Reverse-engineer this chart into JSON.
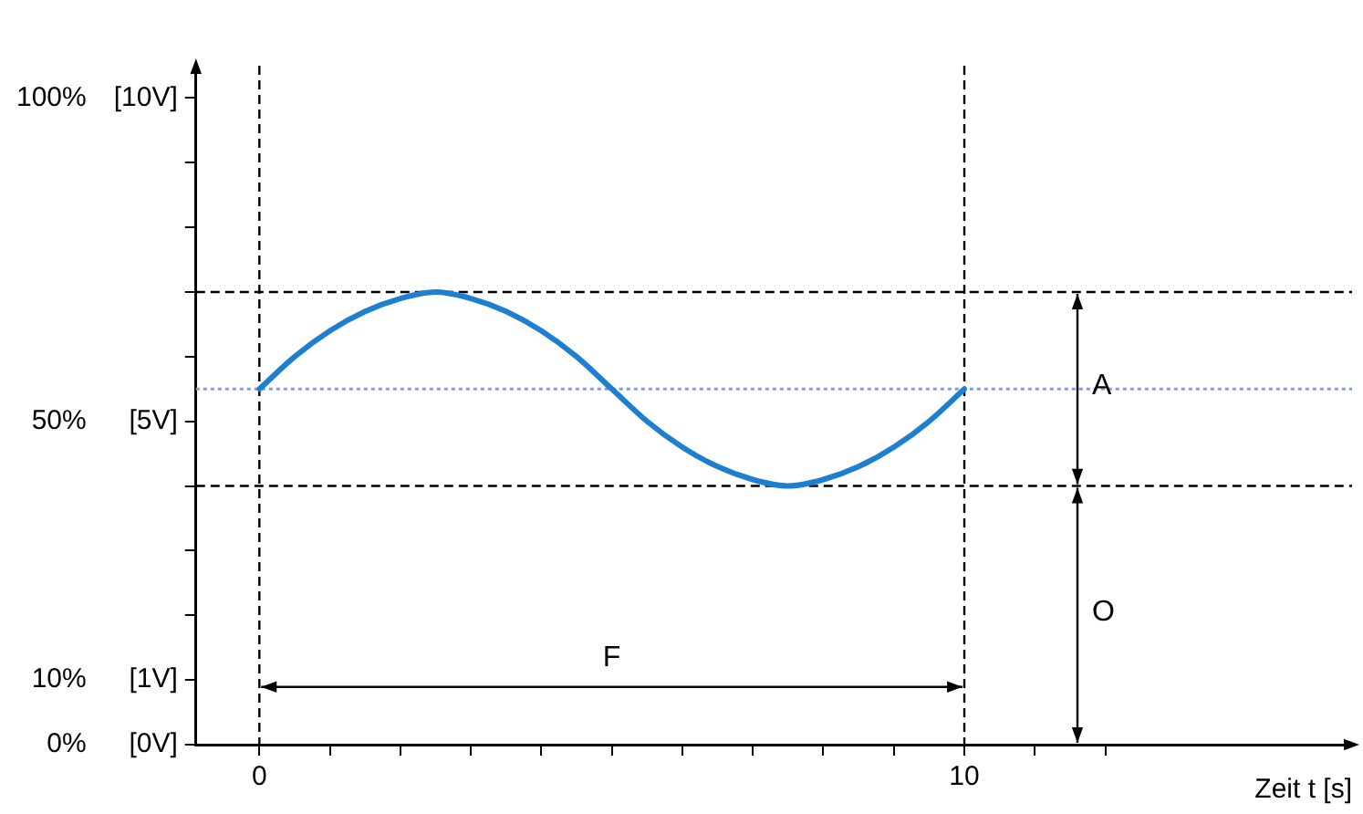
{
  "chart_data": {
    "type": "line",
    "xlabel": "Zeit t [s]",
    "x": [
      0,
      0.5,
      1,
      1.5,
      2,
      2.5,
      3,
      3.5,
      4,
      4.5,
      5,
      5.5,
      6,
      6.5,
      7,
      7.5,
      8,
      8.5,
      9,
      9.5,
      10
    ],
    "series": [
      {
        "color": "#1e7fd0",
        "values": [
          55,
          60,
          64,
          67,
          69,
          70,
          69,
          67,
          64,
          60,
          55,
          50,
          46,
          43,
          41,
          40,
          41,
          43,
          46,
          50,
          55
        ]
      }
    ],
    "xlim": [
      -0.9,
      15.5
    ],
    "xticks": [
      0,
      {
        "value": 1,
        "label": null
      },
      {
        "value": 2,
        "label": null
      },
      {
        "value": 3,
        "label": null
      },
      {
        "value": 4,
        "label": null
      },
      {
        "value": 5,
        "label": null
      },
      {
        "value": 6,
        "label": null
      },
      {
        "value": 7,
        "label": null
      },
      {
        "value": 8,
        "label": null
      },
      {
        "value": 9,
        "label": null
      },
      10,
      {
        "value": 11,
        "label": null
      },
      {
        "value": 12,
        "label": null
      }
    ],
    "ylim": [
      0,
      105
    ],
    "yticks": [
      {
        "value": 0,
        "label": "0%"
      },
      {
        "value": 10,
        "label": "10%"
      },
      {
        "value": 50,
        "label": "50%"
      },
      {
        "value": 100,
        "label": "100%"
      }
    ],
    "y2lim": [
      0,
      10.5
    ],
    "y2ticks": [
      {
        "value": 0,
        "label": "[0V]"
      },
      {
        "value": 1,
        "label": "[1V]"
      },
      {
        "value": 2,
        "label": null
      },
      {
        "value": 3,
        "label": null
      },
      {
        "value": 4,
        "label": null
      },
      {
        "value": 5,
        "label": "[5V]"
      },
      {
        "value": 6,
        "label": null
      },
      {
        "value": 7,
        "label": null
      },
      {
        "value": 8,
        "label": null
      },
      {
        "value": 9,
        "label": null
      },
      {
        "value": 10,
        "label": "[10V]"
      }
    ],
    "ref_lines": [
      {
        "axis": "y",
        "value": 70,
        "color": "#000000",
        "line_style": "dashed"
      },
      {
        "axis": "y",
        "value": 40,
        "color": "#000000",
        "line_style": "dashed"
      },
      {
        "axis": "y",
        "value": 55,
        "color": "#7a9ce8",
        "line_style": "dotted"
      },
      {
        "axis": "x",
        "value": 0,
        "color": "#000000",
        "line_style": "dashed"
      },
      {
        "axis": "x",
        "value": 10,
        "color": "#000000",
        "line_style": "dashed"
      }
    ],
    "annotations": [
      "A",
      "O",
      "F"
    ],
    "grid": false,
    "legend": false,
    "marker": "none",
    "line_style": "solid"
  }
}
